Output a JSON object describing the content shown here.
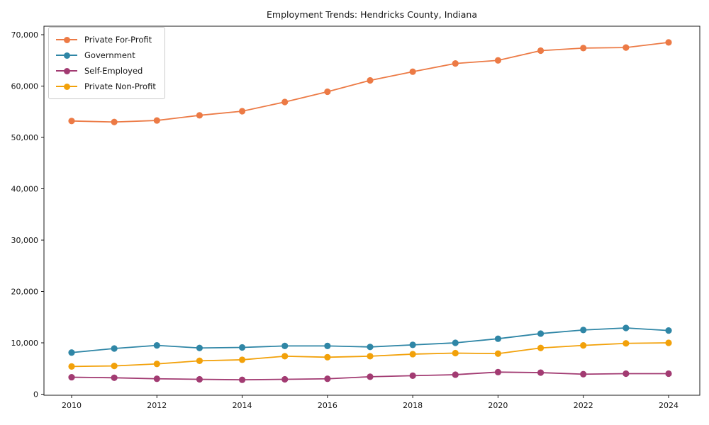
{
  "chart_data": {
    "type": "line",
    "title": "Employment Trends: Hendricks County, Indiana",
    "xlabel": "",
    "ylabel": "",
    "x": [
      2010,
      2011,
      2012,
      2013,
      2014,
      2015,
      2016,
      2017,
      2018,
      2019,
      2020,
      2021,
      2022,
      2023,
      2024
    ],
    "x_tick_labels": [
      "2010",
      "2012",
      "2014",
      "2016",
      "2018",
      "2020",
      "2022",
      "2024"
    ],
    "x_ticks": [
      2010,
      2012,
      2014,
      2016,
      2018,
      2020,
      2022,
      2024
    ],
    "y_ticks": [
      0,
      10000,
      20000,
      30000,
      40000,
      50000,
      60000,
      70000
    ],
    "y_tick_labels": [
      "0",
      "10,000",
      "20,000",
      "30,000",
      "40,000",
      "50,000",
      "60,000",
      "70,000"
    ],
    "ylim": [
      0,
      71500
    ],
    "grid": false,
    "legend_position": "upper-left",
    "axis_color": "#1a1a1a",
    "background_color": "#ffffff",
    "series": [
      {
        "name": "Private For-Profit",
        "color": "#EC7A45",
        "values": [
          53200,
          53000,
          53300,
          54300,
          55100,
          56900,
          58900,
          61100,
          62800,
          64400,
          65000,
          66900,
          67400,
          67500,
          68500
        ]
      },
      {
        "name": "Government",
        "color": "#2F86A6",
        "values": [
          8100,
          8900,
          9500,
          9000,
          9100,
          9400,
          9400,
          9200,
          9600,
          10000,
          10800,
          11800,
          12500,
          12900,
          12400
        ]
      },
      {
        "name": "Self-Employed",
        "color": "#A23B72",
        "values": [
          3300,
          3200,
          3000,
          2900,
          2800,
          2900,
          3000,
          3400,
          3600,
          3800,
          4300,
          4200,
          3900,
          4000,
          4000
        ]
      },
      {
        "name": "Private Non-Profit",
        "color": "#F2A10A",
        "values": [
          5400,
          5500,
          5900,
          6500,
          6700,
          7400,
          7200,
          7400,
          7800,
          8000,
          7900,
          9000,
          9500,
          9900,
          10000
        ]
      }
    ]
  }
}
